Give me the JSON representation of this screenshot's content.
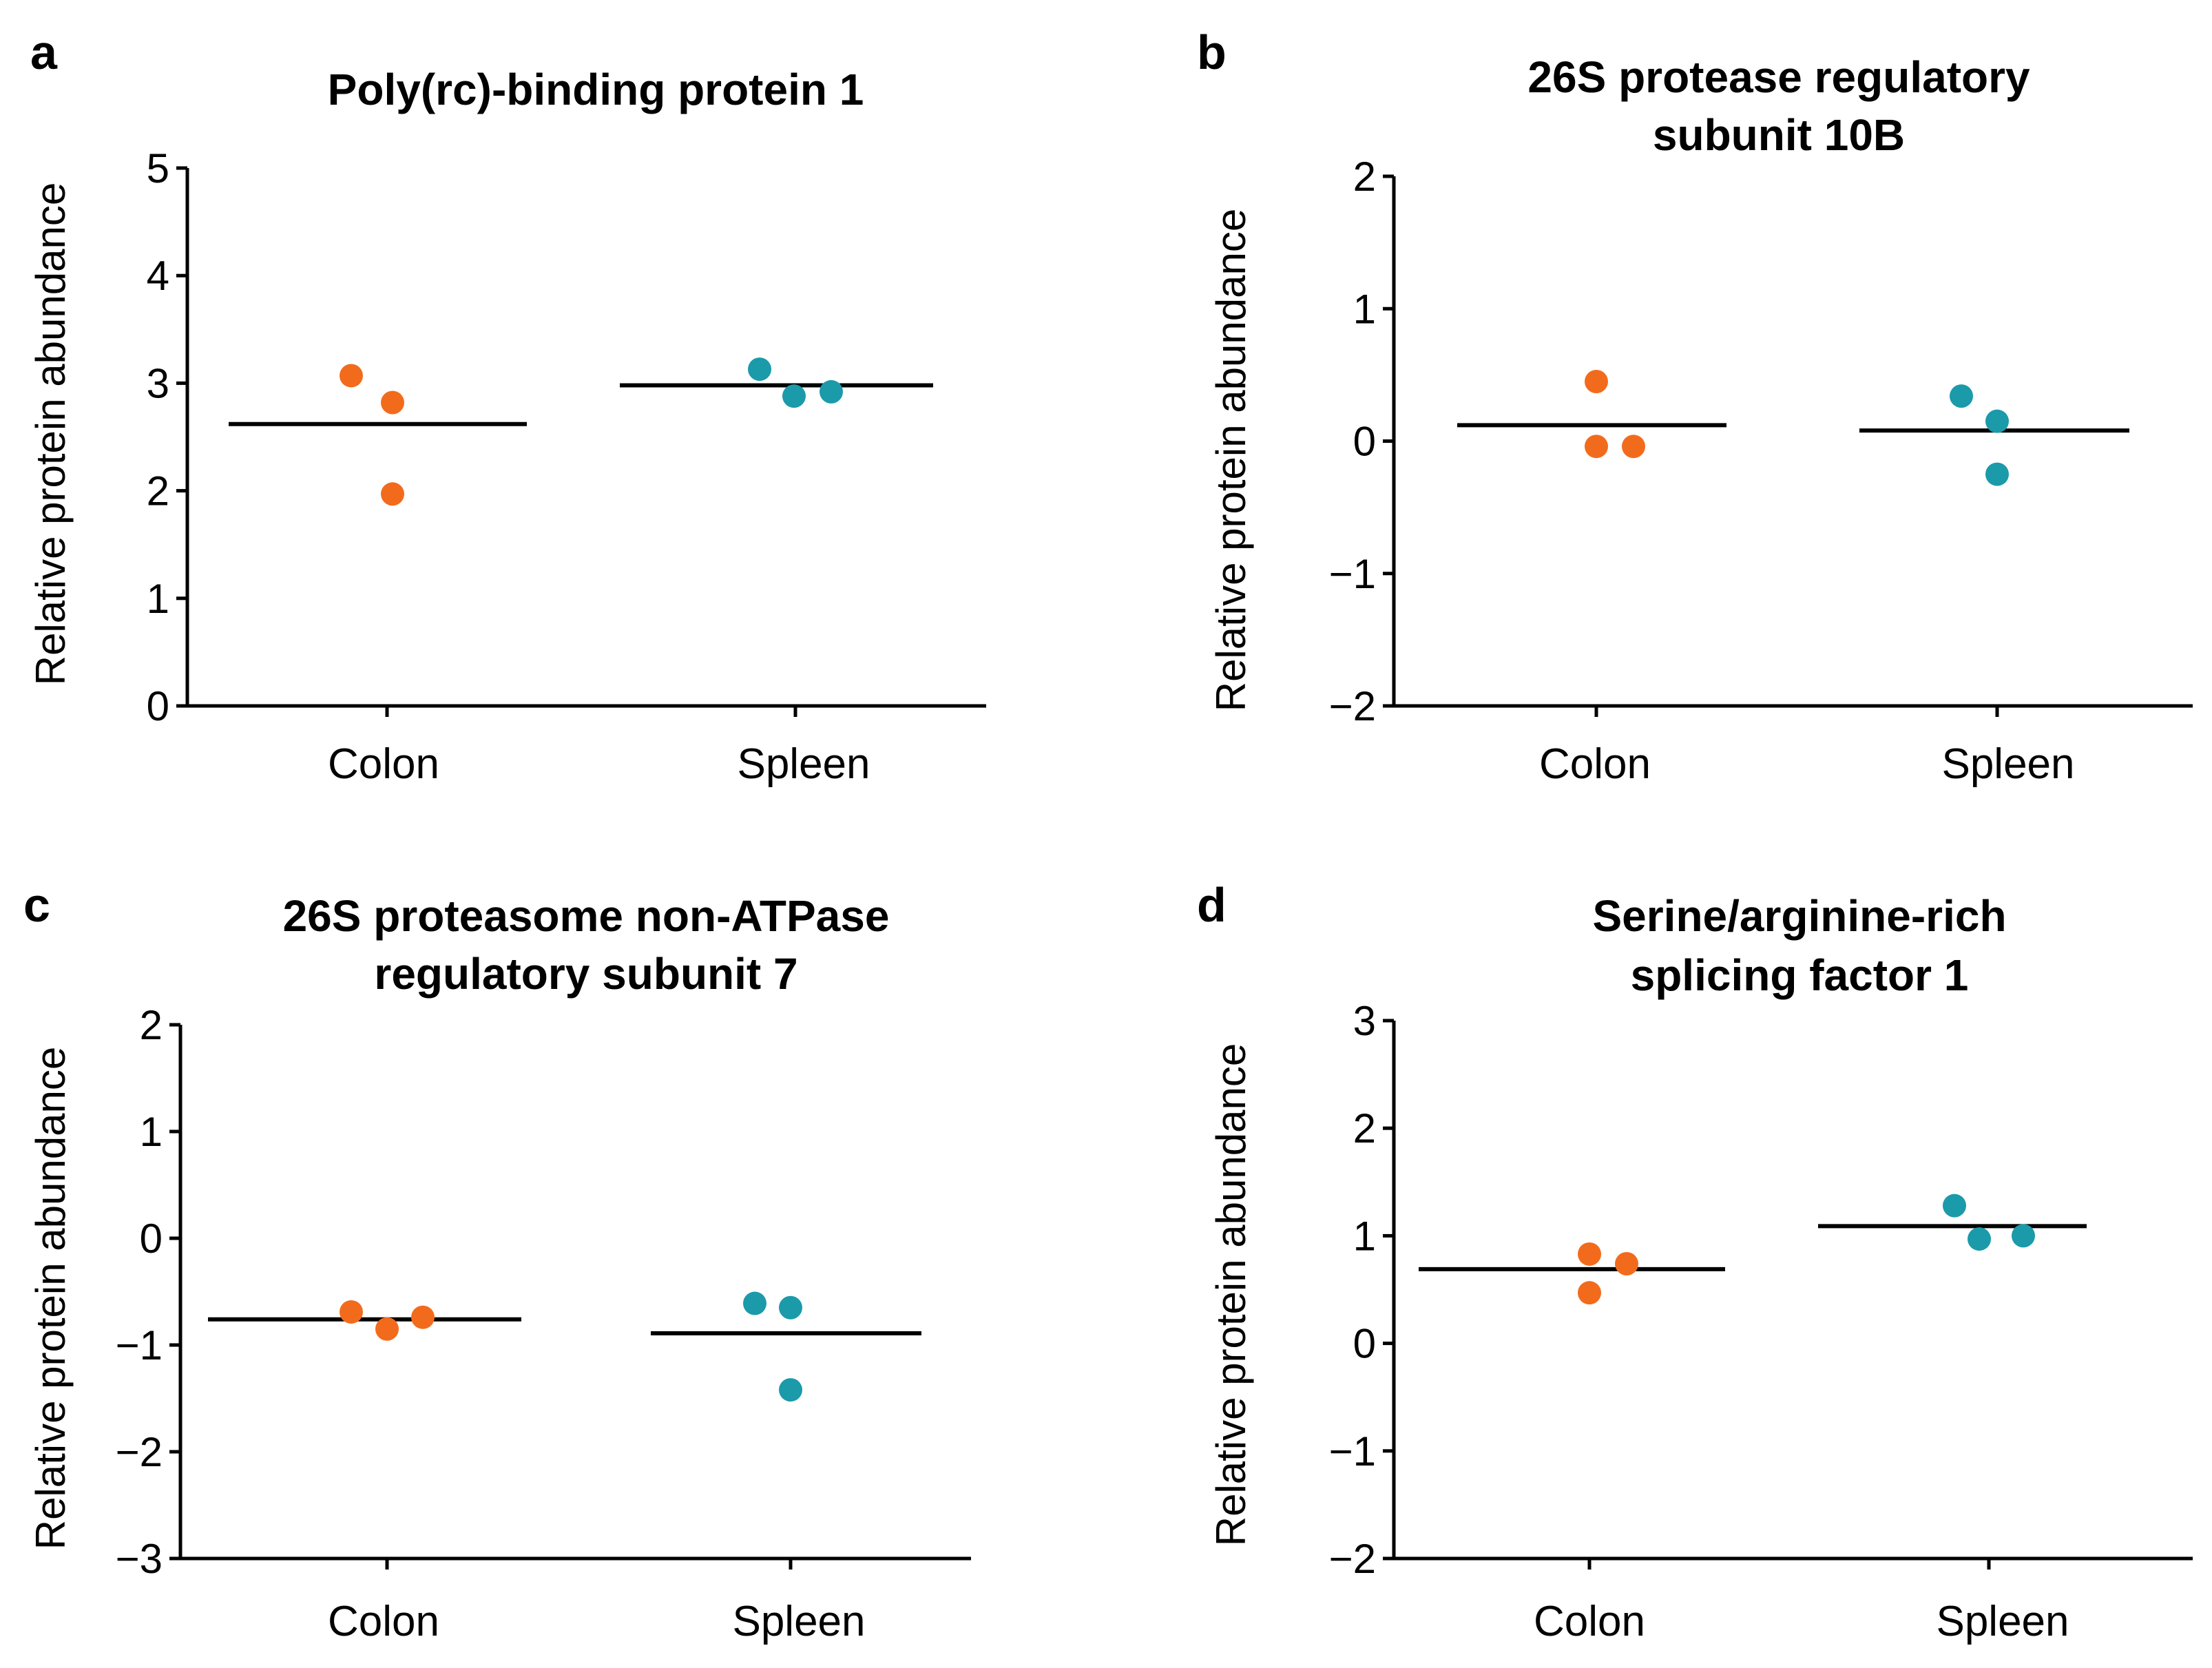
{
  "chart_data": [
    {
      "type": "scatter",
      "panel": "a",
      "title": [
        "Poly(rc)-binding protein 1"
      ],
      "ylabel": "Relative protein abundance",
      "categories": [
        "Colon",
        "Spleen"
      ],
      "ylim": [
        0,
        5
      ],
      "yticks": [
        0,
        1,
        2,
        3,
        4,
        5
      ],
      "series": [
        {
          "name": "Colon",
          "color": "#F26B1D",
          "points": [
            3.07,
            2.82,
            1.97
          ],
          "mean": 2.62
        },
        {
          "name": "Spleen",
          "color": "#1B9AAA",
          "points": [
            3.13,
            2.88,
            2.92
          ],
          "mean": 2.98
        }
      ]
    },
    {
      "type": "scatter",
      "panel": "b",
      "title": [
        "26S protease regulatory",
        "subunit 10B"
      ],
      "ylabel": "Relative protein abundance",
      "categories": [
        "Colon",
        "Spleen"
      ],
      "ylim": [
        -2,
        2
      ],
      "yticks": [
        -2,
        -1,
        0,
        1,
        2
      ],
      "series": [
        {
          "name": "Colon",
          "color": "#F26B1D",
          "points": [
            0.45,
            -0.04,
            -0.04
          ],
          "mean": 0.12
        },
        {
          "name": "Spleen",
          "color": "#1B9AAA",
          "points": [
            0.34,
            0.15,
            -0.25
          ],
          "mean": 0.08
        }
      ]
    },
    {
      "type": "scatter",
      "panel": "c",
      "title": [
        "26S proteasome non-ATPase",
        "regulatory subunit 7"
      ],
      "ylabel": "Relative protein abundance",
      "categories": [
        "Colon",
        "Spleen"
      ],
      "ylim": [
        -3,
        2
      ],
      "yticks": [
        -3,
        -2,
        -1,
        0,
        1,
        2
      ],
      "series": [
        {
          "name": "Colon",
          "color": "#F26B1D",
          "points": [
            -0.69,
            -0.85,
            -0.74
          ],
          "mean": -0.76
        },
        {
          "name": "Spleen",
          "color": "#1B9AAA",
          "points": [
            -0.61,
            -0.65,
            -1.42
          ],
          "mean": -0.89
        }
      ]
    },
    {
      "type": "scatter",
      "panel": "d",
      "title": [
        "Serine/arginine-rich",
        "splicing factor 1"
      ],
      "ylabel": "Relative protein abundance",
      "categories": [
        "Colon",
        "Spleen"
      ],
      "ylim": [
        -2,
        3
      ],
      "yticks": [
        -2,
        -1,
        0,
        1,
        2,
        3
      ],
      "series": [
        {
          "name": "Colon",
          "color": "#F26B1D",
          "points": [
            0.83,
            0.47,
            0.74
          ],
          "mean": 0.69
        },
        {
          "name": "Spleen",
          "color": "#1B9AAA",
          "points": [
            1.28,
            0.97,
            1.0
          ],
          "mean": 1.09
        }
      ]
    }
  ]
}
